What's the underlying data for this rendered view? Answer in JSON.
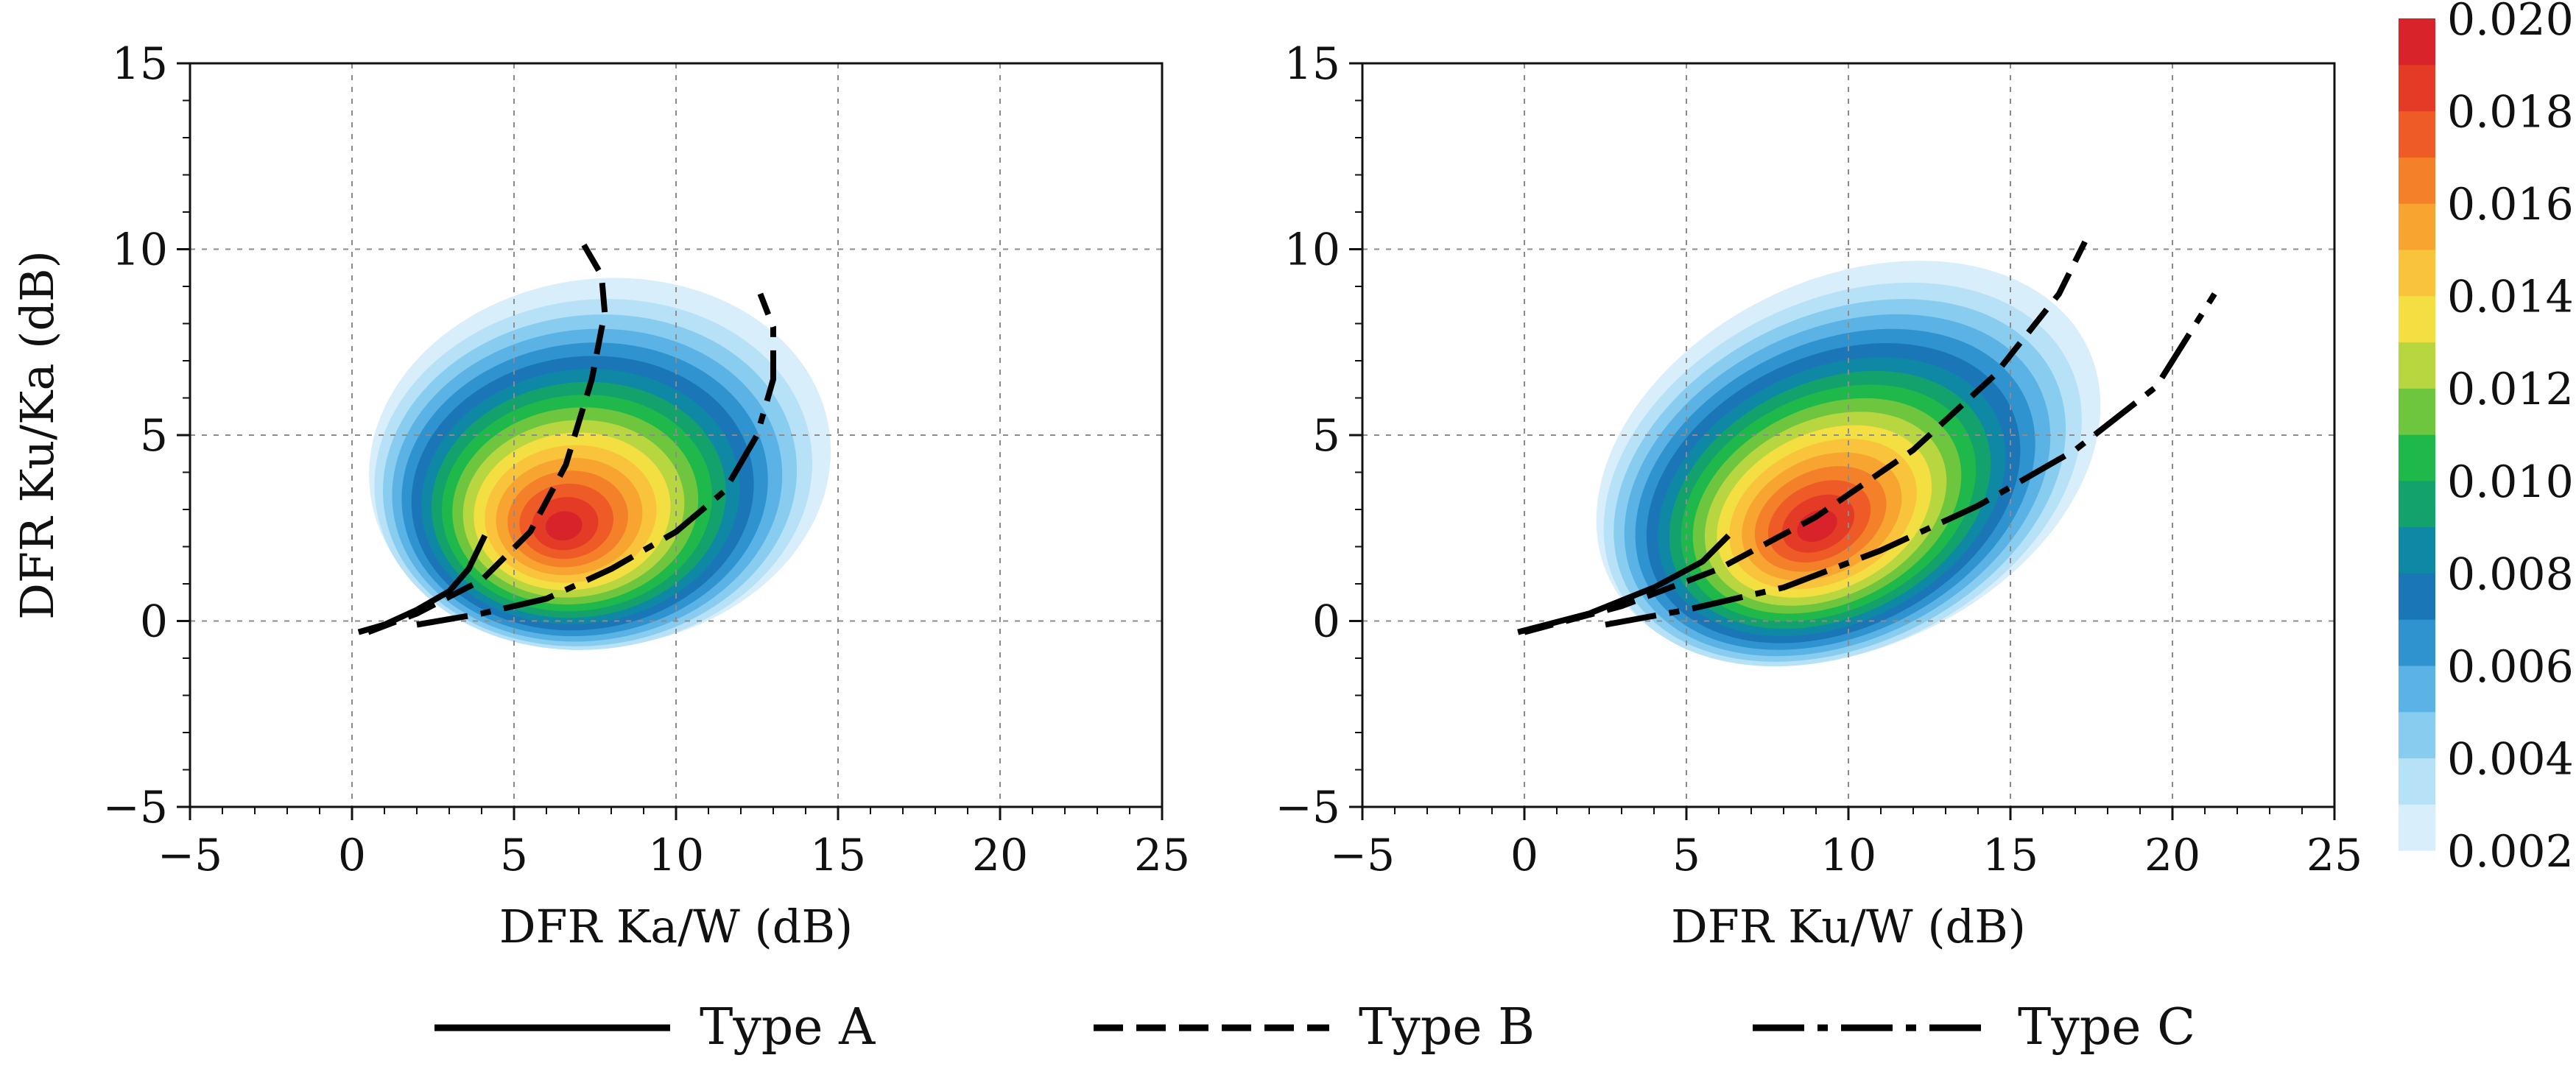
{
  "chart_data": [
    {
      "type": "contour",
      "panel": "left",
      "xlabel": "DFR Ka/W (dB)",
      "ylabel": "DFR Ku/Ka (dB)",
      "xlim": [
        -5,
        25
      ],
      "ylim": [
        -5,
        15
      ],
      "xticks": [
        -5,
        0,
        5,
        10,
        15,
        20,
        25
      ],
      "yticks": [
        -5,
        0,
        5,
        10,
        15
      ],
      "grid": true,
      "density": {
        "peak": [
          6.5,
          2.5
        ],
        "peak_value": 0.02,
        "extent_x": [
          0.5,
          14.8
        ],
        "extent_y": [
          -0.7,
          9.2
        ],
        "orientation": "blob centered right of y-axis, tilted up-left"
      },
      "series": [
        {
          "name": "Type A",
          "style": "solid",
          "points": [
            [
              0.2,
              -0.3
            ],
            [
              1,
              -0.1
            ],
            [
              2,
              0.3
            ],
            [
              3,
              0.8
            ],
            [
              3.6,
              1.4
            ],
            [
              4.1,
              2.3
            ]
          ]
        },
        {
          "name": "Type B",
          "style": "dashed",
          "points": [
            [
              0.5,
              -0.3
            ],
            [
              2,
              0.2
            ],
            [
              4,
              1.1
            ],
            [
              5.5,
              2.4
            ],
            [
              6.6,
              4.2
            ],
            [
              7.4,
              6.5
            ],
            [
              7.8,
              8.3
            ],
            [
              7.7,
              9.3
            ],
            [
              7.1,
              10.2
            ]
          ]
        },
        {
          "name": "Type C",
          "style": "dashdot",
          "points": [
            [
              2,
              -0.1
            ],
            [
              4,
              0.2
            ],
            [
              6,
              0.6
            ],
            [
              8,
              1.4
            ],
            [
              10,
              2.4
            ],
            [
              11.5,
              3.5
            ],
            [
              12.5,
              5
            ],
            [
              13,
              6.5
            ],
            [
              13,
              7.9
            ],
            [
              12.6,
              8.8
            ]
          ]
        }
      ]
    },
    {
      "type": "contour",
      "panel": "right",
      "xlabel": "DFR Ku/W (dB)",
      "ylabel": "",
      "xlim": [
        -5,
        25
      ],
      "ylim": [
        -5,
        15
      ],
      "xticks": [
        -5,
        0,
        5,
        10,
        15,
        20,
        25
      ],
      "yticks": [
        -5,
        0,
        5,
        10,
        15
      ],
      "grid": true,
      "density": {
        "peak": [
          9,
          2.5
        ],
        "peak_value": 0.02,
        "extent_x": [
          1.8,
          18.2
        ],
        "extent_y": [
          -0.7,
          9.2
        ],
        "orientation": "elongated along diagonal"
      },
      "series": [
        {
          "name": "Type A",
          "style": "solid",
          "points": [
            [
              -0.2,
              -0.3
            ],
            [
              2,
              0.2
            ],
            [
              4,
              0.9
            ],
            [
              5.5,
              1.6
            ],
            [
              6.3,
              2.3
            ]
          ]
        },
        {
          "name": "Type B",
          "style": "dashed",
          "points": [
            [
              0,
              -0.3
            ],
            [
              3,
              0.4
            ],
            [
              6,
              1.4
            ],
            [
              9,
              2.8
            ],
            [
              12,
              4.6
            ],
            [
              14.5,
              6.6
            ],
            [
              16.5,
              8.8
            ],
            [
              17.3,
              10.2
            ]
          ]
        },
        {
          "name": "Type C",
          "style": "dashdot",
          "points": [
            [
              2.5,
              -0.1
            ],
            [
              5,
              0.3
            ],
            [
              8,
              0.9
            ],
            [
              11,
              1.9
            ],
            [
              14,
              3.1
            ],
            [
              17,
              4.6
            ],
            [
              19.5,
              6.3
            ],
            [
              21.3,
              8.8
            ]
          ]
        }
      ]
    }
  ],
  "colorbar": {
    "min": 0.002,
    "max": 0.02,
    "ticks": [
      "0.002",
      "0.004",
      "0.006",
      "0.008",
      "0.010",
      "0.012",
      "0.014",
      "0.016",
      "0.018",
      "0.020"
    ],
    "colors": [
      "#d8eefa",
      "#b6e1f6",
      "#88cdf0",
      "#5ab3e4",
      "#2e93cf",
      "#1b76b8",
      "#0f88a5",
      "#14a26c",
      "#1fb84a",
      "#6dc63e",
      "#b7d640",
      "#f3df42",
      "#f9c43c",
      "#f8a430",
      "#f4812a",
      "#ee5b26",
      "#e33b25",
      "#d9232a"
    ]
  },
  "legend": {
    "items": [
      {
        "label": "Type A",
        "style": "solid"
      },
      {
        "label": "Type B",
        "style": "dashed"
      },
      {
        "label": "Type C",
        "style": "dashdot"
      }
    ]
  }
}
